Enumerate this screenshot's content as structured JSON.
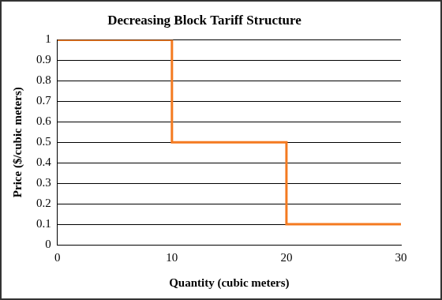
{
  "chart_data": {
    "type": "line",
    "title": "Decreasing Block Tariff Structure",
    "x_label": "Quantity (cubic meters)",
    "y_label": "Price ($/cubic meters)",
    "x": [
      0,
      10,
      10,
      20,
      20,
      30
    ],
    "values": [
      1,
      1,
      0.5,
      0.5,
      0.1,
      0.1
    ],
    "color": "#f47a20",
    "xlim": [
      0,
      30
    ],
    "xticks": [
      0,
      10,
      20,
      30
    ],
    "ylim": [
      0,
      1
    ],
    "yticks": [
      0,
      0.1,
      0.2,
      0.3,
      0.4,
      0.5,
      0.6,
      0.7,
      0.8,
      0.9,
      1
    ],
    "grid": "y"
  }
}
